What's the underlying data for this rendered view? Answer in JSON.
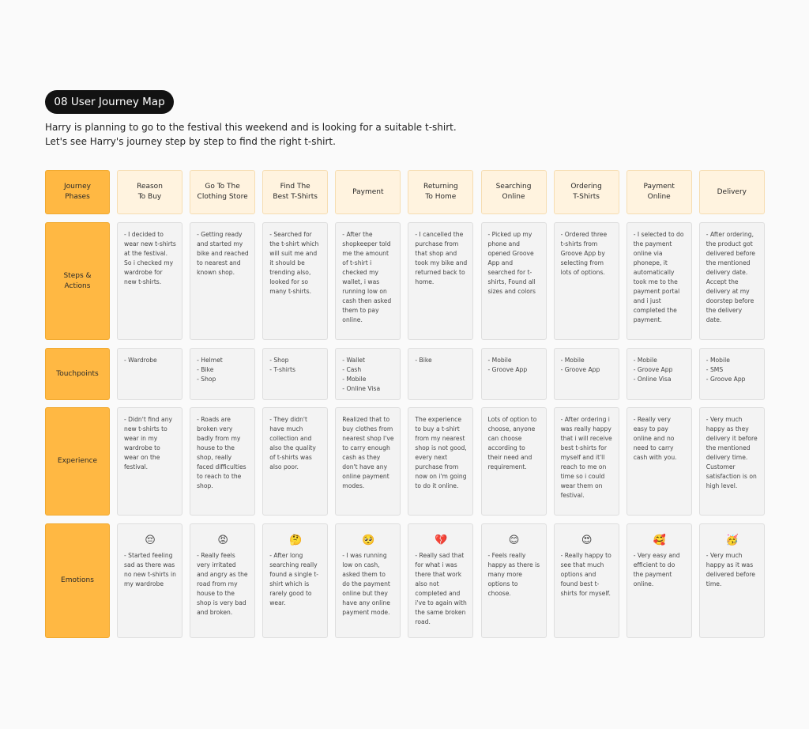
{
  "header": {
    "title": "08 User Journey Map",
    "description": [
      "Harry is planning to go to the festival this weekend and is looking for a suitable t-shirt.",
      "Let's see Harry's journey step by step to find the right t-shirt."
    ]
  },
  "phases": {
    "label": [
      "Journey",
      "Phases"
    ],
    "cells": [
      [
        "Reason",
        "To Buy"
      ],
      [
        "Go To The",
        "Clothing Store"
      ],
      [
        "Find The",
        "Best T-Shirts"
      ],
      [
        "Payment"
      ],
      [
        "Returning",
        "To Home"
      ],
      [
        "Searching",
        "Online"
      ],
      [
        "Ordering",
        "T-Shirts"
      ],
      [
        "Payment",
        "Online"
      ],
      [
        "Delivery"
      ]
    ]
  },
  "steps": {
    "label": [
      "Steps &",
      "Actions"
    ],
    "cells": [
      "- I decided to wear new t-shirts at the festival. So i checked my wardrobe for new t-shirts.",
      "- Getting ready and started my bike and reached to nearest and known shop.",
      "- Searched for the t-shirt which will suit me and it should be trending also, looked for so many t-shirts.",
      "- After the shopkeeper told me the amount of t-shirt i checked my wallet, i was running low on cash then asked them to pay online.",
      "- I cancelled the purchase from that shop and took my bike and returned back to home.",
      "- Picked up my phone and opened Groove App and searched for t-shirts, Found all sizes and colors",
      "- Ordered three t-shirts from Groove App by selecting from lots of options.",
      "- I selected to do the payment online via phonepe, it automatically took me to the payment portal and i just completed the payment.",
      "- After ordering, the product got delivered before the mentioned delivery date. Accept the delivery at my doorstep before the delivery date."
    ]
  },
  "touchpoints": {
    "label": [
      "Touchpoints"
    ],
    "cells": [
      [
        "- Wardrobe"
      ],
      [
        "- Helmet",
        "- Bike",
        "- Shop"
      ],
      [
        "- Shop",
        "- T-shirts"
      ],
      [
        "- Wallet",
        "- Cash",
        "- Mobile",
        "- Online Visa"
      ],
      [
        "- Bike"
      ],
      [
        "- Mobile",
        "- Groove App"
      ],
      [
        "- Mobile",
        "- Groove App"
      ],
      [
        "- Mobile",
        "- Groove App",
        "- Online Visa"
      ],
      [
        "- Mobile",
        "- SMS",
        "- Groove App"
      ]
    ]
  },
  "experience": {
    "label": [
      "Experience"
    ],
    "cells": [
      "- Didn't find any new t-shirts to wear in my wardrobe to wear on the festival.",
      "- Roads are broken very badly from my house to the shop, really faced difficulties to reach to the shop.",
      "- They didn't have much collection and also the quality of t-shirts was also poor.",
      "Realized that to buy clothes from nearest shop I've to carry enough cash as they don't have any online payment modes.",
      "The experience to buy a t-shirt from my nearest shop is not good, every next purchase from now on i'm going to do it online.",
      "Lots of option to choose, anyone can choose according to their need and requirement.",
      "- After ordering i was really happy that i will receive best t-shirts for myself and it'll reach to me on time so i could wear them on festival.",
      "- Really very easy to pay online and no need to carry cash with you.",
      "- Very much happy as they delivery it before the mentioned delivery time. Customer satisfaction is on high level."
    ]
  },
  "emotions": {
    "label": [
      "Emotions"
    ],
    "cells": [
      {
        "emoji": "😔",
        "text": "- Started feeling sad as there was no new t-shirts in my wardrobe"
      },
      {
        "emoji": "😡",
        "text": "- Really feels very irritated and angry as the road from my house to the shop is very bad and broken."
      },
      {
        "emoji": "🤔",
        "text": "- After long searching really found a single t-shirt which is rarely good to wear."
      },
      {
        "emoji": "🥺",
        "text": "- I was running low on cash, asked them to do the payment online but they have any online payment mode."
      },
      {
        "emoji": "💔",
        "text": "- Really sad that for what i was there that work also not completed and i've to again with the same broken road."
      },
      {
        "emoji": "😊",
        "text": "- Feels really happy as there is many more options to choose."
      },
      {
        "emoji": "😍",
        "text": "- Really happy to see that much options and found best t-shirts for myself."
      },
      {
        "emoji": "🥰",
        "text": "- Very easy and efficient to do the payment online."
      },
      {
        "emoji": "🥳",
        "text": "- Very much happy as it was delivered before time."
      }
    ]
  }
}
